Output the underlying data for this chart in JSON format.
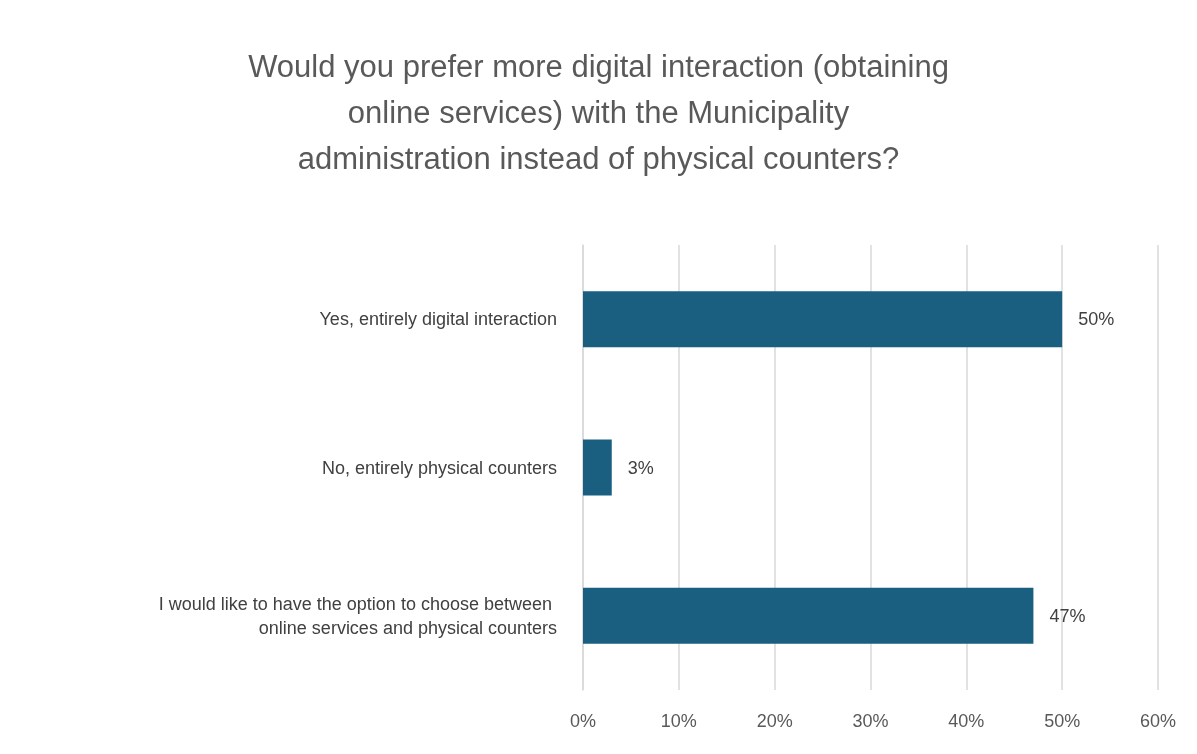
{
  "chart_data": {
    "type": "bar",
    "orientation": "horizontal",
    "title": "Would you prefer more digital interaction (obtaining online services) with the Municipality administration instead of physical counters?",
    "categories": [
      "Yes, entirely digital interaction",
      "No, entirely physical counters",
      "I would like to have the option to choose between online services and physical counters"
    ],
    "values": [
      50,
      3,
      47
    ],
    "value_labels": [
      "50%",
      "3%",
      "47%"
    ],
    "color": "#1a5e80",
    "xlim": [
      0,
      60
    ],
    "xticks": [
      {
        "value": 0,
        "label": "0%"
      },
      {
        "value": 10,
        "label": "10%"
      },
      {
        "value": 20,
        "label": "20%"
      },
      {
        "value": 30,
        "label": "30%"
      },
      {
        "value": 40,
        "label": "40%"
      },
      {
        "value": 50,
        "label": "50%"
      },
      {
        "value": 60,
        "label": "60%"
      }
    ],
    "grid": "x"
  }
}
